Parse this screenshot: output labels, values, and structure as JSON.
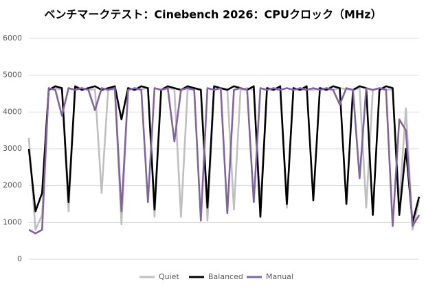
{
  "chart_data": {
    "type": "line",
    "title": "ベンチマークテスト：Cinebench 2026：CPUクロック（MHz）",
    "ylim": [
      0,
      6000
    ],
    "yticks": [
      0,
      1000,
      2000,
      3000,
      4000,
      5000,
      6000
    ],
    "grid": true,
    "legend": "bottom",
    "series": [
      {
        "name": "Quiet",
        "color": "#bfbfbf",
        "values": [
          3300,
          800,
          1200,
          4600,
          4650,
          4600,
          1300,
          4620,
          4650,
          4600,
          4620,
          1800,
          4650,
          4600,
          950,
          4650,
          4600,
          4620,
          4650,
          1150,
          4600,
          4650,
          4620,
          1150,
          4600,
          4650,
          4620,
          1050,
          4600,
          4650,
          4620,
          1350,
          4600,
          4650,
          4600,
          1450,
          4650,
          4620,
          4600,
          1400,
          4650,
          4600,
          4620,
          4600,
          4650,
          4620,
          4600,
          4650,
          4620,
          4600,
          4650,
          1400,
          4600,
          4650,
          4620,
          4600,
          1500,
          4100,
          800,
          1600
        ]
      },
      {
        "name": "Balanced",
        "color": "#000000",
        "values": [
          3000,
          1300,
          1800,
          4600,
          4700,
          4650,
          1550,
          4700,
          4600,
          4650,
          4700,
          4600,
          4650,
          4700,
          3800,
          4650,
          4600,
          4700,
          4650,
          1350,
          4600,
          4700,
          4650,
          4600,
          4700,
          4650,
          4600,
          1400,
          4700,
          4650,
          4600,
          4700,
          4650,
          4600,
          4700,
          1150,
          4650,
          4600,
          4700,
          1500,
          4650,
          4600,
          4700,
          1600,
          4650,
          4600,
          4700,
          4650,
          1500,
          4600,
          4700,
          4650,
          1200,
          4600,
          4700,
          4650,
          1200,
          3000,
          1000,
          1700
        ]
      },
      {
        "name": "Manual",
        "color": "#8064a2",
        "values": [
          800,
          700,
          800,
          4650,
          4600,
          3900,
          4650,
          4600,
          4650,
          4600,
          4050,
          4650,
          4600,
          4650,
          1300,
          4600,
          4650,
          4600,
          1550,
          4650,
          4600,
          4650,
          3200,
          4600,
          4650,
          4600,
          1050,
          4650,
          4600,
          4650,
          1250,
          4600,
          4650,
          4600,
          1550,
          4650,
          4600,
          4650,
          4600,
          4650,
          4600,
          4650,
          4600,
          4650,
          4600,
          4650,
          4600,
          4200,
          4650,
          4600,
          2200,
          4650,
          4600,
          4650,
          4600,
          900,
          3800,
          3500,
          900,
          1200
        ]
      }
    ]
  }
}
